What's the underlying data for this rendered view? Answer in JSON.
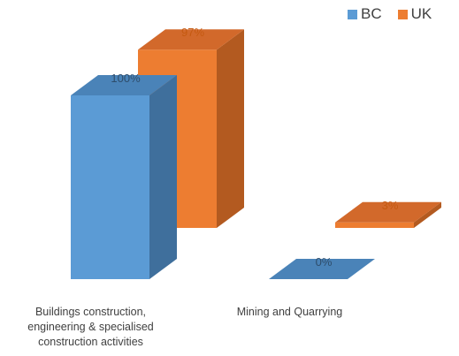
{
  "chart_data": {
    "type": "bar",
    "categories": [
      "Buildings construction, engineering & specialised construction activities",
      "Mining and Quarrying"
    ],
    "category_label_lines": [
      [
        "Buildings construction,",
        "engineering & specialised",
        "construction activities"
      ],
      [
        "Mining and Quarrying"
      ]
    ],
    "series": [
      {
        "name": "BC",
        "values": [
          100,
          0
        ],
        "labels": [
          "100%",
          "0%"
        ]
      },
      {
        "name": "UK",
        "values": [
          97,
          3
        ],
        "labels": [
          "97%",
          "3%"
        ]
      }
    ],
    "ylim": [
      0,
      100
    ],
    "grid": false,
    "legend_position": "top-right",
    "style": "3d-column"
  },
  "colors": {
    "BC": {
      "front": "#5b9bd5",
      "top": "#4a83b8",
      "side": "#3f6f9c",
      "label": "#2e4d6b"
    },
    "UK": {
      "front": "#ed7d31",
      "top": "#d2692b",
      "side": "#b35a20",
      "label": "#c55a11"
    }
  },
  "legend": [
    {
      "name": "BC",
      "color": "#5b9bd5"
    },
    {
      "name": "UK",
      "color": "#ed7d31"
    }
  ]
}
